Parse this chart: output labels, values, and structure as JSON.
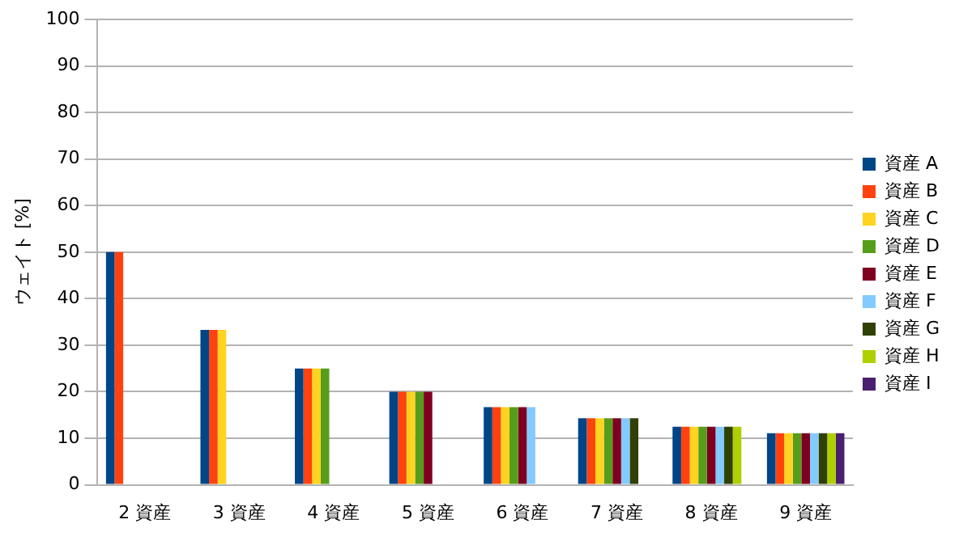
{
  "chart_data": {
    "type": "bar",
    "ylabel": "ウェイト [%]",
    "categories": [
      "2 資産",
      "3 資産",
      "4 資産",
      "5 資産",
      "6 資産",
      "7 資産",
      "8 資産",
      "9 資産"
    ],
    "series": [
      {
        "name": "資産 A",
        "color": "#004586",
        "values": [
          50,
          33.3,
          25,
          20,
          16.7,
          14.3,
          12.5,
          11.1
        ]
      },
      {
        "name": "資産 B",
        "color": "#ff420e",
        "values": [
          50,
          33.3,
          25,
          20,
          16.7,
          14.3,
          12.5,
          11.1
        ]
      },
      {
        "name": "資産 C",
        "color": "#ffd320",
        "values": [
          null,
          33.3,
          25,
          20,
          16.7,
          14.3,
          12.5,
          11.1
        ]
      },
      {
        "name": "資産 D",
        "color": "#579d1c",
        "values": [
          null,
          null,
          25,
          20,
          16.7,
          14.3,
          12.5,
          11.1
        ]
      },
      {
        "name": "資産 E",
        "color": "#7e0021",
        "values": [
          null,
          null,
          null,
          20,
          16.7,
          14.3,
          12.5,
          11.1
        ]
      },
      {
        "name": "資産 F",
        "color": "#83caff",
        "values": [
          null,
          null,
          null,
          null,
          16.7,
          14.3,
          12.5,
          11.1
        ]
      },
      {
        "name": "資産 G",
        "color": "#314004",
        "values": [
          null,
          null,
          null,
          null,
          null,
          14.3,
          12.5,
          11.1
        ]
      },
      {
        "name": "資産 H",
        "color": "#aecf00",
        "values": [
          null,
          null,
          null,
          null,
          null,
          null,
          12.5,
          11.1
        ]
      },
      {
        "name": "資産 I",
        "color": "#4b1f6f",
        "values": [
          null,
          null,
          null,
          null,
          null,
          null,
          null,
          11.1
        ]
      }
    ],
    "ylim": [
      0,
      100
    ],
    "yticks": [
      0,
      10,
      20,
      30,
      40,
      50,
      60,
      70,
      80,
      90,
      100
    ],
    "grid": "y",
    "legend": "right"
  }
}
